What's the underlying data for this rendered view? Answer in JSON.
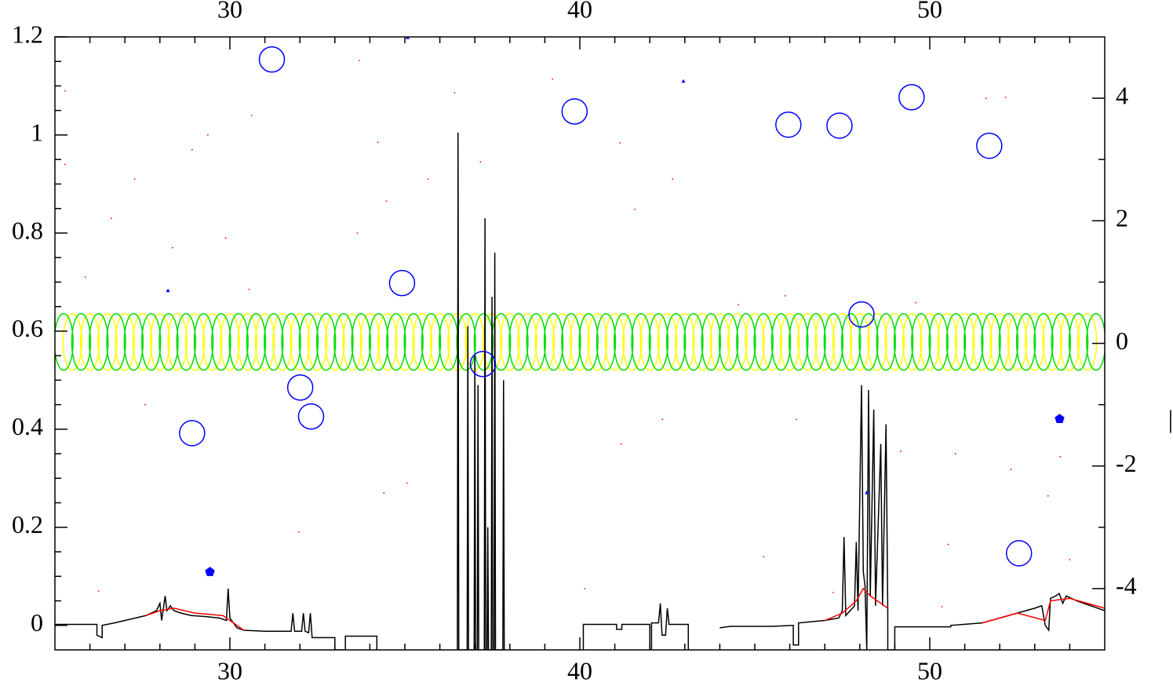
{
  "chart_data": {
    "type": "line",
    "xlim": [
      25,
      55
    ],
    "ylim": [
      -0.05,
      1.2
    ],
    "y2lim": [
      -5,
      5
    ],
    "xticks": [
      30,
      40,
      50
    ],
    "yticks": [
      0,
      0.2,
      0.4,
      0.6,
      0.8,
      1,
      1.2
    ],
    "y2ticks": [
      -4,
      -2,
      0,
      2,
      4
    ],
    "xminorticks": [
      26,
      27,
      28,
      29,
      31,
      32,
      33,
      34,
      35,
      36,
      37,
      38,
      39,
      41,
      42,
      43,
      44,
      45,
      46,
      47,
      48,
      49,
      51,
      52,
      53,
      54
    ],
    "yminorticks": [
      0.05,
      0.1,
      0.15,
      0.25,
      0.3,
      0.35,
      0.45,
      0.5,
      0.55,
      0.65,
      0.7,
      0.75,
      0.85,
      0.9,
      0.95,
      1.05,
      1.1,
      1.15
    ],
    "y2minorticks": [
      -3,
      -1,
      1,
      3
    ],
    "y2label": "|",
    "series": [
      {
        "type": "ellipse",
        "color": "#ffff00",
        "x": [
          25.5,
          26,
          26.5,
          27,
          27.5,
          28,
          28.5,
          29,
          29.5,
          30,
          30.5,
          31,
          31.5,
          32,
          32.5,
          33,
          33.5,
          34,
          34.5,
          35,
          35.5,
          36,
          36.5,
          37,
          37.5,
          38,
          38.5,
          39,
          39.5,
          40,
          40.5,
          41,
          41.5,
          42,
          42.5,
          43,
          43.5,
          44,
          44.5,
          45,
          45.5,
          46,
          46.5,
          47,
          47.5,
          48,
          48.5,
          49,
          49.5,
          50,
          50.5,
          51,
          51.5,
          52,
          52.5,
          53,
          53.5,
          54,
          54.5
        ],
        "values": [
          0.578,
          0.578,
          0.578,
          0.578,
          0.578,
          0.578,
          0.578,
          0.578,
          0.578,
          0.578,
          0.578,
          0.578,
          0.578,
          0.578,
          0.578,
          0.578,
          0.578,
          0.578,
          0.578,
          0.578,
          0.578,
          0.578,
          0.578,
          0.578,
          0.578,
          0.578,
          0.578,
          0.578,
          0.578,
          0.578,
          0.578,
          0.578,
          0.578,
          0.578,
          0.578,
          0.578,
          0.578,
          0.578,
          0.578,
          0.578,
          0.578,
          0.578,
          0.578,
          0.578,
          0.578,
          0.578,
          0.578,
          0.578,
          0.578,
          0.578,
          0.578,
          0.578,
          0.578,
          0.578,
          0.578,
          0.578,
          0.578,
          0.578,
          0.578
        ]
      },
      {
        "type": "ellipse",
        "color": "#00dd00",
        "x": [
          25.25,
          25.75,
          26.25,
          26.75,
          27.25,
          27.75,
          28.25,
          28.75,
          29.25,
          29.75,
          30.25,
          30.75,
          31.25,
          31.75,
          32.25,
          32.75,
          33.25,
          33.75,
          34.25,
          34.75,
          35.25,
          35.75,
          36.25,
          36.75,
          37.25,
          37.75,
          38.25,
          38.75,
          39.25,
          39.75,
          40.25,
          40.75,
          41.25,
          41.75,
          42.25,
          42.75,
          43.25,
          43.75,
          44.25,
          44.75,
          45.25,
          45.75,
          46.25,
          46.75,
          47.25,
          47.75,
          48.25,
          48.75,
          49.25,
          49.75,
          50.25,
          50.75,
          51.25,
          51.75,
          52.25,
          52.75,
          53.25,
          53.75,
          54.25,
          54.75
        ],
        "values": [
          0.578,
          0.578,
          0.578,
          0.578,
          0.578,
          0.578,
          0.578,
          0.578,
          0.578,
          0.578,
          0.578,
          0.578,
          0.578,
          0.578,
          0.578,
          0.578,
          0.578,
          0.578,
          0.578,
          0.578,
          0.578,
          0.578,
          0.578,
          0.578,
          0.578,
          0.578,
          0.578,
          0.578,
          0.578,
          0.578,
          0.578,
          0.578,
          0.578,
          0.578,
          0.578,
          0.578,
          0.578,
          0.578,
          0.578,
          0.578,
          0.578,
          0.578,
          0.578,
          0.578,
          0.578,
          0.578,
          0.578,
          0.578,
          0.578,
          0.578,
          0.578,
          0.578,
          0.578,
          0.578,
          0.578,
          0.578,
          0.578,
          0.578,
          0.578,
          0.578
        ]
      },
      {
        "type": "line",
        "color": "#000000",
        "x": [
          25,
          26.2,
          26.2,
          26.35,
          26.35,
          26.7,
          27.0,
          27.3,
          27.6,
          27.9,
          28.0,
          28.05,
          28.15,
          28.2,
          28.3,
          28.4,
          28.6,
          28.9,
          29.3,
          29.7,
          29.9,
          29.95,
          30.0,
          30.2,
          30.4,
          31.0,
          31.75,
          31.8,
          31.85,
          32.05,
          32.1,
          32.15,
          32.25,
          32.3,
          32.35,
          33.0,
          33.0,
          33.3,
          33.3,
          34.2,
          34.2,
          null,
          36.5,
          36.52,
          36.54,
          36.78,
          36.8,
          36.82,
          36.98,
          37.0,
          37.02,
          37.07,
          37.09,
          37.11,
          37.27,
          37.29,
          37.31,
          37.35,
          37.37,
          37.39,
          37.47,
          37.49,
          37.51,
          37.55,
          37.57,
          37.59,
          37.8,
          37.82,
          37.84,
          null,
          40.1,
          40.1,
          41.05,
          41.05,
          41.2,
          41.2,
          42.0,
          42.0,
          42.05,
          42.05,
          42.25,
          42.3,
          42.35,
          42.45,
          42.5,
          42.55,
          43.1,
          43.1,
          null,
          44.0,
          44.3,
          45.5,
          46.1,
          46.1,
          46.25,
          46.25,
          47.0,
          47.4,
          47.5,
          47.55,
          47.6,
          47.85,
          47.9,
          47.95,
          48.05,
          48.1,
          48.15,
          48.2,
          48.25,
          48.3,
          48.4,
          48.45,
          48.6,
          48.65,
          48.75,
          48.8,
          48.8,
          49.0,
          49.0,
          50.6,
          50.6,
          51.5,
          52.0,
          52.5,
          53.0,
          53.2,
          53.3,
          53.4,
          53.45,
          53.6,
          53.7,
          53.8,
          53.9,
          54.2,
          54.6,
          55
        ],
        "values": [
          0.002,
          0.002,
          -0.02,
          -0.025,
          0.0,
          0.005,
          0.01,
          0.015,
          0.02,
          0.03,
          0.045,
          0.01,
          0.06,
          0.03,
          0.04,
          0.03,
          0.025,
          0.02,
          0.018,
          0.015,
          0.01,
          0.075,
          0.015,
          -0.005,
          -0.01,
          -0.012,
          -0.012,
          0.025,
          -0.012,
          -0.012,
          0.025,
          -0.012,
          -0.015,
          0.025,
          -0.025,
          -0.025,
          -0.05,
          -0.05,
          -0.022,
          -0.022,
          -0.05,
          null,
          -0.05,
          1.005,
          -0.05,
          -0.05,
          0.61,
          -0.05,
          -0.05,
          0.55,
          -0.05,
          -0.05,
          0.49,
          -0.05,
          -0.05,
          0.83,
          -0.05,
          -0.05,
          0.2,
          -0.05,
          -0.05,
          0.67,
          -0.05,
          -0.05,
          0.76,
          -0.05,
          -0.05,
          0.5,
          -0.05,
          null,
          -0.05,
          0.002,
          0.002,
          -0.008,
          -0.008,
          0.002,
          0.002,
          -0.05,
          -0.05,
          0.005,
          0.005,
          0.045,
          -0.02,
          -0.02,
          0.035,
          0.002,
          0.002,
          -0.05,
          null,
          -0.005,
          -0.002,
          -0.002,
          0.0,
          -0.04,
          -0.04,
          0.005,
          0.01,
          0.015,
          0.03,
          0.18,
          0.02,
          0.04,
          0.17,
          0.03,
          0.49,
          0.11,
          0.08,
          -0.05,
          0.48,
          0.06,
          0.44,
          0.04,
          0.37,
          0.04,
          0.41,
          0.03,
          -0.05,
          -0.05,
          -0.003,
          -0.003,
          0.0,
          0.005,
          0.015,
          0.025,
          0.035,
          0.04,
          0.0,
          -0.01,
          0.055,
          0.06,
          0.065,
          0.045,
          0.06,
          0.05,
          0.04,
          0.03
        ]
      },
      {
        "type": "line",
        "color": "#ff0000",
        "x": [
          27.6,
          28.0,
          28.4,
          29.0,
          29.8,
          30.2,
          30.4,
          null,
          47.0,
          47.5,
          47.9,
          48.1,
          48.3,
          48.6,
          48.8,
          null,
          51.5,
          52.5,
          53.3,
          53.45,
          54.0,
          54.5,
          55
        ],
        "values": [
          0.02,
          0.03,
          0.035,
          0.025,
          0.02,
          0.0,
          -0.01,
          null,
          0.01,
          0.025,
          0.05,
          0.075,
          0.06,
          0.045,
          0.035,
          null,
          0.005,
          0.025,
          0.01,
          0.05,
          0.055,
          0.045,
          0.035
        ]
      },
      {
        "type": "scatter",
        "marker": "dot",
        "color": "#ff0000",
        "x": [
          25.29,
          25.29,
          25.87,
          26.25,
          26.61,
          27.28,
          27.58,
          28.36,
          28.92,
          29.37,
          29.88,
          30.62,
          30.55,
          31.97,
          33.64,
          33.7,
          34.23,
          34.4,
          34.47,
          35.06,
          35.66,
          36.42,
          37.16,
          39.22,
          40.14,
          41.15,
          41.18,
          41.57,
          42.36,
          42.65,
          44.53,
          45.25,
          45.87,
          46.19,
          47.24,
          49.17,
          49.6,
          50.35,
          50.53,
          50.73,
          51.61,
          52.17,
          52.32,
          53.38,
          54.0,
          53.73
        ],
        "values": [
          1.09,
          0.94,
          0.71,
          0.07,
          0.83,
          0.91,
          0.45,
          0.77,
          0.97,
          1.0,
          0.79,
          1.04,
          0.685,
          0.19,
          0.8,
          1.152,
          0.985,
          0.27,
          0.865,
          0.29,
          0.91,
          1.086,
          0.945,
          1.114,
          0.075,
          0.984,
          0.37,
          0.848,
          0.42,
          0.91,
          0.654,
          0.14,
          0.672,
          0.42,
          0.067,
          0.355,
          0.658,
          0.038,
          0.165,
          0.35,
          1.075,
          1.077,
          0.318,
          0.264,
          0.134,
          0.344
        ]
      },
      {
        "type": "scatter",
        "marker": "circle",
        "color": "#0000ff",
        "x": [
          31.2,
          28.92,
          32.01,
          32.32,
          34.92,
          37.23,
          39.85,
          45.96,
          47.42,
          48.05,
          49.48,
          51.7,
          52.55
        ],
        "values": [
          1.154,
          0.392,
          0.485,
          0.426,
          0.698,
          0.533,
          1.048,
          1.021,
          1.019,
          0.634,
          1.077,
          0.978,
          0.147
        ]
      },
      {
        "type": "scatter",
        "marker": "triangle",
        "color": "#0000ff",
        "x": [
          28.23,
          35.08,
          42.96,
          48.2
        ],
        "values": [
          0.682,
          1.198,
          1.109,
          0.27
        ]
      },
      {
        "type": "scatter",
        "marker": "pentagon",
        "color": "#0000ff",
        "x": [
          29.43,
          53.71
        ],
        "values": [
          0.109,
          0.421
        ]
      }
    ]
  }
}
